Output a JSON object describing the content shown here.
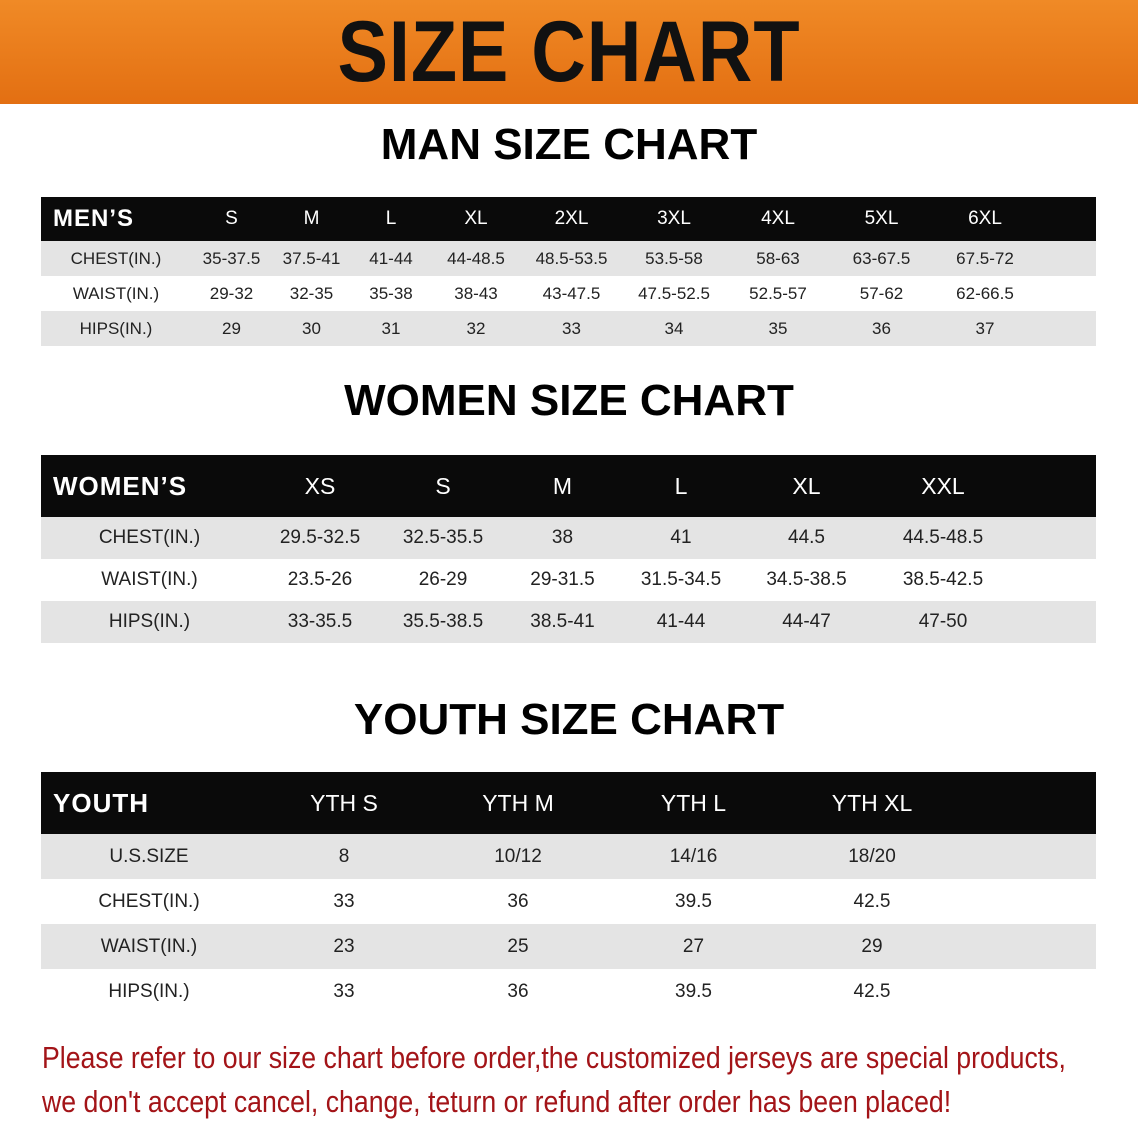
{
  "banner_title": "SIZE CHART",
  "colors": {
    "banner": "#e8781a",
    "header_row": "#0a0a0a",
    "stripe": "#e4e4e4",
    "note_text": "#a31418"
  },
  "men": {
    "title": "MAN SIZE CHART",
    "headers": [
      "MEN’S",
      "S",
      "M",
      "L",
      "XL",
      "2XL",
      "3XL",
      "4XL",
      "5XL",
      "6XL",
      ""
    ],
    "rows": [
      [
        "CHEST(IN.)",
        "35-37.5",
        "37.5-41",
        "41-44",
        "44-48.5",
        "48.5-53.5",
        "53.5-58",
        "58-63",
        "63-67.5",
        "67.5-72",
        ""
      ],
      [
        "WAIST(IN.)",
        "29-32",
        "32-35",
        "35-38",
        "38-43",
        "43-47.5",
        "47.5-52.5",
        "52.5-57",
        "57-62",
        "62-66.5",
        ""
      ],
      [
        "HIPS(IN.)",
        "29",
        "30",
        "31",
        "32",
        "33",
        "34",
        "35",
        "36",
        "37",
        ""
      ]
    ]
  },
  "women": {
    "title": "WOMEN SIZE CHART",
    "headers": [
      "WOMEN’S",
      "XS",
      "S",
      "M",
      "L",
      "XL",
      "XXL",
      ""
    ],
    "rows": [
      [
        "CHEST(IN.)",
        "29.5-32.5",
        "32.5-35.5",
        "38",
        "41",
        "44.5",
        "44.5-48.5",
        ""
      ],
      [
        "WAIST(IN.)",
        "23.5-26",
        "26-29",
        "29-31.5",
        "31.5-34.5",
        "34.5-38.5",
        "38.5-42.5",
        ""
      ],
      [
        "HIPS(IN.)",
        "33-35.5",
        "35.5-38.5",
        "38.5-41",
        "41-44",
        "44-47",
        "47-50",
        ""
      ]
    ]
  },
  "youth": {
    "title": "YOUTH SIZE CHART",
    "headers": [
      "YOUTH",
      "YTH S",
      "YTH M",
      "YTH L",
      "YTH XL",
      ""
    ],
    "rows": [
      [
        "U.S.SIZE",
        "8",
        "10/12",
        "14/16",
        "18/20",
        ""
      ],
      [
        "CHEST(IN.)",
        "33",
        "36",
        "39.5",
        "42.5",
        ""
      ],
      [
        "WAIST(IN.)",
        "23",
        "25",
        "27",
        "29",
        ""
      ],
      [
        "HIPS(IN.)",
        "33",
        "36",
        "39.5",
        "42.5",
        ""
      ]
    ]
  },
  "note": {
    "line1": "Please refer to our size chart before order,the customized jerseys are special products,",
    "line2": "we don't accept cancel, change, teturn or refund after order has been placed!"
  }
}
